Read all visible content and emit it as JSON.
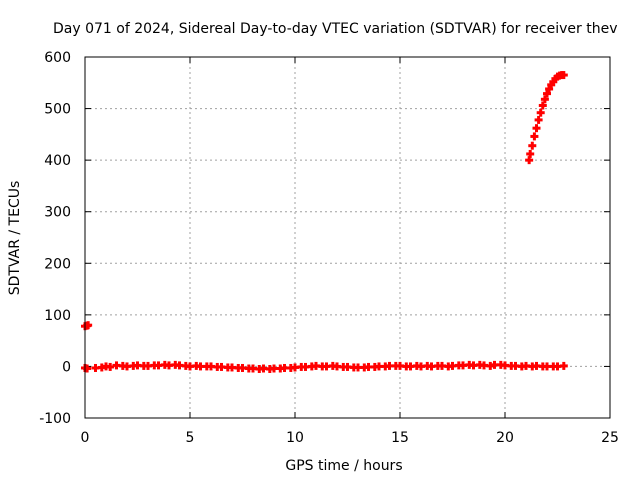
{
  "chart_data": {
    "type": "scatter",
    "title": "Day 071 of 2024, Sidereal Day-to-day VTEC variation (SDTVAR) for receiver thev",
    "xlabel": "GPS time / hours",
    "ylabel": "SDTVAR / TECUs",
    "xlim": [
      0,
      25
    ],
    "ylim": [
      -100,
      600
    ],
    "x_ticks": [
      "0",
      "5",
      "10",
      "15",
      "20",
      "25"
    ],
    "y_ticks": [
      "-100",
      "0",
      "100",
      "200",
      "300",
      "400",
      "500",
      "600"
    ],
    "grid": true,
    "legend": "none",
    "series": [
      {
        "color": "#ff0000",
        "marker": "plus",
        "points": [
          [
            0.0,
            78
          ],
          [
            0.1,
            79
          ],
          [
            0.15,
            80
          ],
          [
            0.0,
            -3
          ],
          [
            0.1,
            -4
          ],
          [
            0.5,
            -3
          ],
          [
            0.8,
            -2
          ],
          [
            1.0,
            0
          ],
          [
            1.2,
            -1
          ],
          [
            1.5,
            2
          ],
          [
            1.8,
            1
          ],
          [
            2.0,
            0
          ],
          [
            2.3,
            1
          ],
          [
            2.5,
            2
          ],
          [
            2.8,
            1
          ],
          [
            3.0,
            1
          ],
          [
            3.3,
            2
          ],
          [
            3.5,
            2
          ],
          [
            3.8,
            3
          ],
          [
            4.0,
            2
          ],
          [
            4.3,
            3
          ],
          [
            4.5,
            2
          ],
          [
            4.8,
            1
          ],
          [
            5.0,
            0
          ],
          [
            5.3,
            1
          ],
          [
            5.5,
            0
          ],
          [
            5.8,
            0
          ],
          [
            6.0,
            0
          ],
          [
            6.3,
            -1
          ],
          [
            6.5,
            -1
          ],
          [
            6.8,
            -2
          ],
          [
            7.0,
            -2
          ],
          [
            7.3,
            -3
          ],
          [
            7.5,
            -3
          ],
          [
            7.8,
            -4
          ],
          [
            8.0,
            -4
          ],
          [
            8.3,
            -5
          ],
          [
            8.5,
            -4
          ],
          [
            8.8,
            -5
          ],
          [
            9.0,
            -4
          ],
          [
            9.3,
            -4
          ],
          [
            9.5,
            -3
          ],
          [
            9.8,
            -3
          ],
          [
            10.0,
            -2
          ],
          [
            10.3,
            -1
          ],
          [
            10.5,
            -1
          ],
          [
            10.8,
            0
          ],
          [
            11.0,
            1
          ],
          [
            11.3,
            0
          ],
          [
            11.5,
            0
          ],
          [
            11.8,
            1
          ],
          [
            12.0,
            0
          ],
          [
            12.3,
            -1
          ],
          [
            12.5,
            -1
          ],
          [
            12.8,
            -2
          ],
          [
            13.0,
            -2
          ],
          [
            13.3,
            -2
          ],
          [
            13.5,
            -1
          ],
          [
            13.8,
            -1
          ],
          [
            14.0,
            0
          ],
          [
            14.3,
            0
          ],
          [
            14.5,
            1
          ],
          [
            14.8,
            1
          ],
          [
            15.0,
            1
          ],
          [
            15.3,
            0
          ],
          [
            15.5,
            0
          ],
          [
            15.8,
            1
          ],
          [
            16.0,
            0
          ],
          [
            16.3,
            1
          ],
          [
            16.5,
            0
          ],
          [
            16.8,
            1
          ],
          [
            17.0,
            1
          ],
          [
            17.3,
            0
          ],
          [
            17.5,
            1
          ],
          [
            17.8,
            2
          ],
          [
            18.0,
            2
          ],
          [
            18.3,
            3
          ],
          [
            18.5,
            2
          ],
          [
            18.8,
            3
          ],
          [
            19.0,
            2
          ],
          [
            19.3,
            1
          ],
          [
            19.5,
            3
          ],
          [
            19.8,
            3
          ],
          [
            20.0,
            2
          ],
          [
            20.3,
            1
          ],
          [
            20.5,
            1
          ],
          [
            20.8,
            0
          ],
          [
            21.0,
            1
          ],
          [
            21.3,
            0
          ],
          [
            21.5,
            1
          ],
          [
            21.8,
            0
          ],
          [
            22.0,
            0
          ],
          [
            22.3,
            0
          ],
          [
            22.5,
            0
          ],
          [
            22.8,
            1
          ],
          [
            21.15,
            400
          ],
          [
            21.2,
            412
          ],
          [
            21.3,
            428
          ],
          [
            21.4,
            446
          ],
          [
            21.5,
            462
          ],
          [
            21.6,
            478
          ],
          [
            21.7,
            492
          ],
          [
            21.8,
            506
          ],
          [
            21.9,
            518
          ],
          [
            22.0,
            529
          ],
          [
            22.1,
            538
          ],
          [
            22.2,
            546
          ],
          [
            22.3,
            552
          ],
          [
            22.4,
            558
          ],
          [
            22.5,
            562
          ],
          [
            22.6,
            564
          ],
          [
            22.7,
            565
          ],
          [
            22.8,
            565
          ]
        ]
      }
    ]
  }
}
